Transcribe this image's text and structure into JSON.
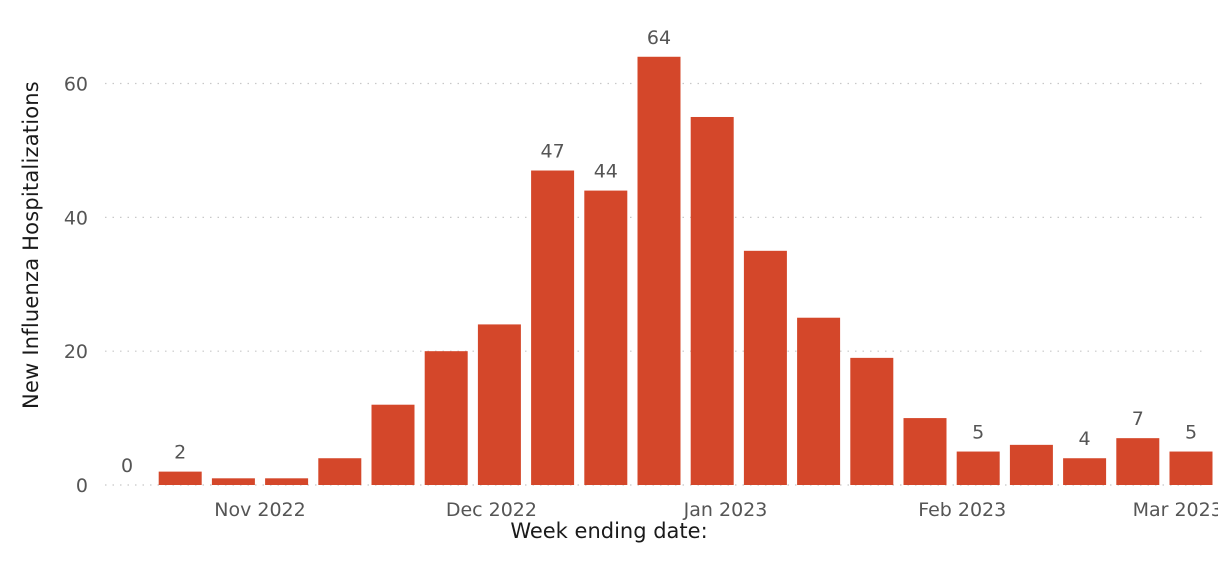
{
  "chart_data": {
    "type": "bar",
    "xlabel": "Week ending date:",
    "ylabel": "New Influenza Hospitalizations",
    "ylim": [
      0,
      68
    ],
    "grid": true,
    "bar_color": "#d4472a",
    "y_ticks": [
      "0",
      "20",
      "40",
      "60"
    ],
    "x_ticks": [
      {
        "index": 2.5,
        "label": "Nov 2022"
      },
      {
        "index": 6.85,
        "label": "Dec 2022"
      },
      {
        "index": 11.25,
        "label": "Jan 2023"
      },
      {
        "index": 15.7,
        "label": "Feb 2023"
      },
      {
        "index": 19.75,
        "label": "Mar 2023"
      }
    ],
    "values": [
      0,
      2,
      1,
      1,
      4,
      12,
      20,
      24,
      47,
      44,
      64,
      55,
      35,
      25,
      19,
      10,
      5,
      6,
      4,
      7,
      5
    ],
    "data_labels": [
      "0",
      "2",
      null,
      null,
      null,
      null,
      null,
      null,
      "47",
      "44",
      "64",
      null,
      null,
      null,
      null,
      null,
      "5",
      null,
      "4",
      "7",
      "5"
    ]
  }
}
